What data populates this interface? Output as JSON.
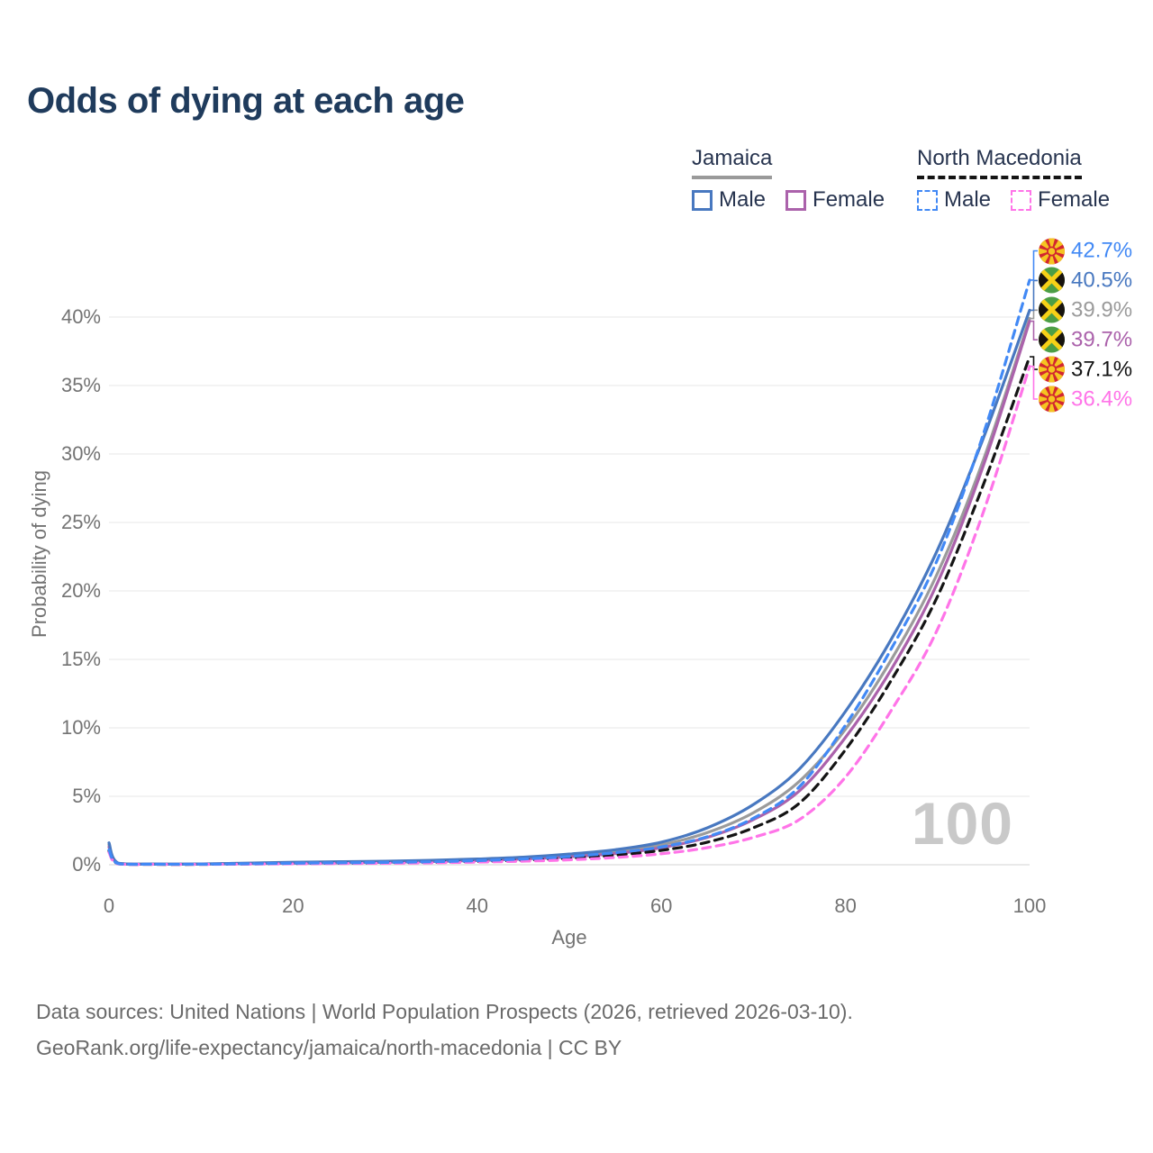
{
  "title": "Odds of dying at each age",
  "watermark": "100",
  "legend": {
    "groups": [
      {
        "name": "Jamaica",
        "underline": "solid",
        "items": [
          {
            "label": "Male"
          },
          {
            "label": "Female"
          }
        ]
      },
      {
        "name": "North Macedonia",
        "underline": "dashed",
        "items": [
          {
            "label": "Male"
          },
          {
            "label": "Female"
          }
        ]
      }
    ]
  },
  "axes": {
    "y_title": "Probability of dying",
    "x_title": "Age"
  },
  "footer": {
    "line1": "Data sources: United Nations | World Population Prospects (2026, retrieved 2026-03-10).",
    "line2": "GeoRank.org/life-expectancy/jamaica/north-macedonia | CC BY"
  },
  "chart_data": {
    "type": "line",
    "title": "Odds of dying at each age",
    "xlabel": "Age",
    "ylabel": "Probability of dying",
    "xlim": [
      0,
      100
    ],
    "ylim": [
      0,
      45
    ],
    "x_ticks": [
      0,
      20,
      40,
      60,
      80,
      100
    ],
    "y_ticks": [
      0,
      5,
      10,
      15,
      20,
      25,
      30,
      35,
      40
    ],
    "y_tick_suffix": "%",
    "grid": "horizontal",
    "x": [
      0,
      1,
      5,
      10,
      15,
      20,
      25,
      30,
      35,
      40,
      45,
      50,
      55,
      60,
      65,
      70,
      75,
      80,
      85,
      90,
      95,
      100
    ],
    "series": [
      {
        "name": "Jamaica",
        "group": "Jamaica",
        "flag": "jamaica",
        "color": "#9b9b9b",
        "dashed": false,
        "label_row": 2,
        "end_label": "39.9%",
        "values": [
          1.45,
          0.11,
          0.05,
          0.05,
          0.1,
          0.15,
          0.18,
          0.22,
          0.27,
          0.36,
          0.48,
          0.68,
          0.95,
          1.45,
          2.35,
          3.8,
          6.1,
          9.9,
          15.0,
          21.3,
          29.6,
          39.9
        ]
      },
      {
        "name": "Jamaica Female",
        "group": "Jamaica",
        "flag": "jamaica",
        "color": "#ab62ab",
        "dashed": false,
        "label_row": 3,
        "end_label": "39.7%",
        "values": [
          1.3,
          0.1,
          0.04,
          0.05,
          0.08,
          0.11,
          0.14,
          0.18,
          0.23,
          0.31,
          0.42,
          0.58,
          0.82,
          1.25,
          2.0,
          3.3,
          5.4,
          9.3,
          14.3,
          20.6,
          29.2,
          39.7
        ]
      },
      {
        "name": "Jamaica Male",
        "group": "Jamaica",
        "flag": "jamaica",
        "color": "#4878c0",
        "dashed": false,
        "label_row": 1,
        "end_label": "40.5%",
        "values": [
          1.6,
          0.12,
          0.05,
          0.06,
          0.12,
          0.18,
          0.22,
          0.26,
          0.32,
          0.42,
          0.55,
          0.78,
          1.1,
          1.65,
          2.7,
          4.4,
          7.0,
          11.2,
          16.5,
          23.0,
          31.2,
          40.5
        ]
      },
      {
        "name": "North Macedonia",
        "group": "North Macedonia",
        "flag": "north-macedonia",
        "color": "#141414",
        "dashed": true,
        "label_row": 4,
        "end_label": "37.1%",
        "values": [
          1.0,
          0.07,
          0.03,
          0.03,
          0.06,
          0.09,
          0.11,
          0.14,
          0.18,
          0.24,
          0.34,
          0.48,
          0.7,
          1.05,
          1.65,
          2.7,
          4.5,
          8.4,
          13.5,
          19.6,
          27.8,
          37.1
        ]
      },
      {
        "name": "North Macedonia Female",
        "group": "North Macedonia",
        "flag": "north-macedonia",
        "color": "#ff74e8",
        "dashed": true,
        "label_row": 5,
        "end_label": "36.4%",
        "values": [
          0.9,
          0.06,
          0.03,
          0.03,
          0.05,
          0.07,
          0.09,
          0.11,
          0.14,
          0.19,
          0.26,
          0.36,
          0.53,
          0.8,
          1.25,
          2.0,
          3.3,
          6.4,
          11.3,
          17.2,
          25.8,
          36.4
        ]
      },
      {
        "name": "North Macedonia Male",
        "group": "North Macedonia",
        "flag": "north-macedonia",
        "color": "#4289f5",
        "dashed": true,
        "label_row": 0,
        "end_label": "42.7%",
        "values": [
          1.1,
          0.08,
          0.04,
          0.04,
          0.07,
          0.11,
          0.14,
          0.17,
          0.22,
          0.3,
          0.42,
          0.6,
          0.88,
          1.3,
          2.05,
          3.4,
          5.7,
          10.2,
          15.8,
          22.3,
          31.5,
          42.7
        ]
      }
    ],
    "flag_colors": {
      "jamaica": {
        "green": "#4c9e45",
        "black": "#17130d",
        "gold": "#f7d117"
      },
      "north_macedonia": {
        "red": "#d22730",
        "yellow": "#f5c421"
      }
    }
  }
}
